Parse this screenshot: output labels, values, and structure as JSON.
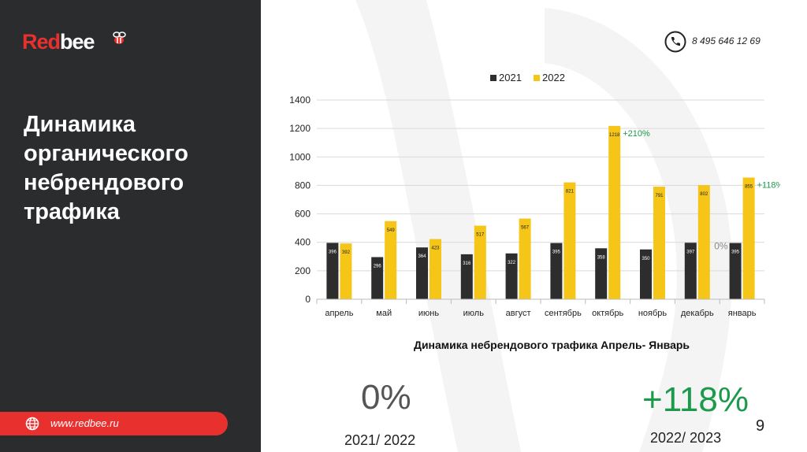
{
  "brand": {
    "name_red": "Red",
    "name_white": "bee"
  },
  "sidebar": {
    "title_lines": [
      "Динамика",
      "органического",
      "небрендового",
      "трафика"
    ],
    "url": "www.redbee.ru"
  },
  "contact": {
    "phone": "8 495 646 12 69"
  },
  "colors": {
    "sidebar": "#2a2c2e",
    "accent_red": "#e8312f",
    "series_2021": "#2d2d2d",
    "series_2022": "#f5c518",
    "positive_green": "#1a9a4a"
  },
  "chart_data": {
    "type": "bar",
    "title": "Динамика небрендового трафика Апрель- Январь",
    "categories": [
      "апрель",
      "май",
      "июнь",
      "июль",
      "август",
      "сентябрь",
      "октябрь",
      "ноябрь",
      "декабрь",
      "январь"
    ],
    "series": [
      {
        "name": "2021",
        "values": [
          396,
          296,
          364,
          316,
          322,
          395,
          358,
          350,
          397,
          395
        ]
      },
      {
        "name": "2022",
        "values": [
          392,
          549,
          423,
          517,
          567,
          821,
          1218,
          791,
          802,
          855
        ]
      }
    ],
    "ylim": [
      0,
      1400
    ],
    "yticks": [
      0,
      200,
      400,
      600,
      800,
      1000,
      1200,
      1400
    ],
    "grid": true,
    "legend": "top-center",
    "annotations": [
      {
        "text": "+210%",
        "category": "октябрь",
        "color": "#1a9a4a"
      },
      {
        "text": "+118%",
        "category": "январь",
        "color": "#1a9a4a"
      },
      {
        "text": "0%",
        "category": "январь",
        "color": "#888888"
      }
    ]
  },
  "summary": {
    "left_value": "0%",
    "left_period": "2021/ 2022",
    "right_value": "+118%",
    "right_period": "2022/ 2023"
  },
  "page_number": "9"
}
